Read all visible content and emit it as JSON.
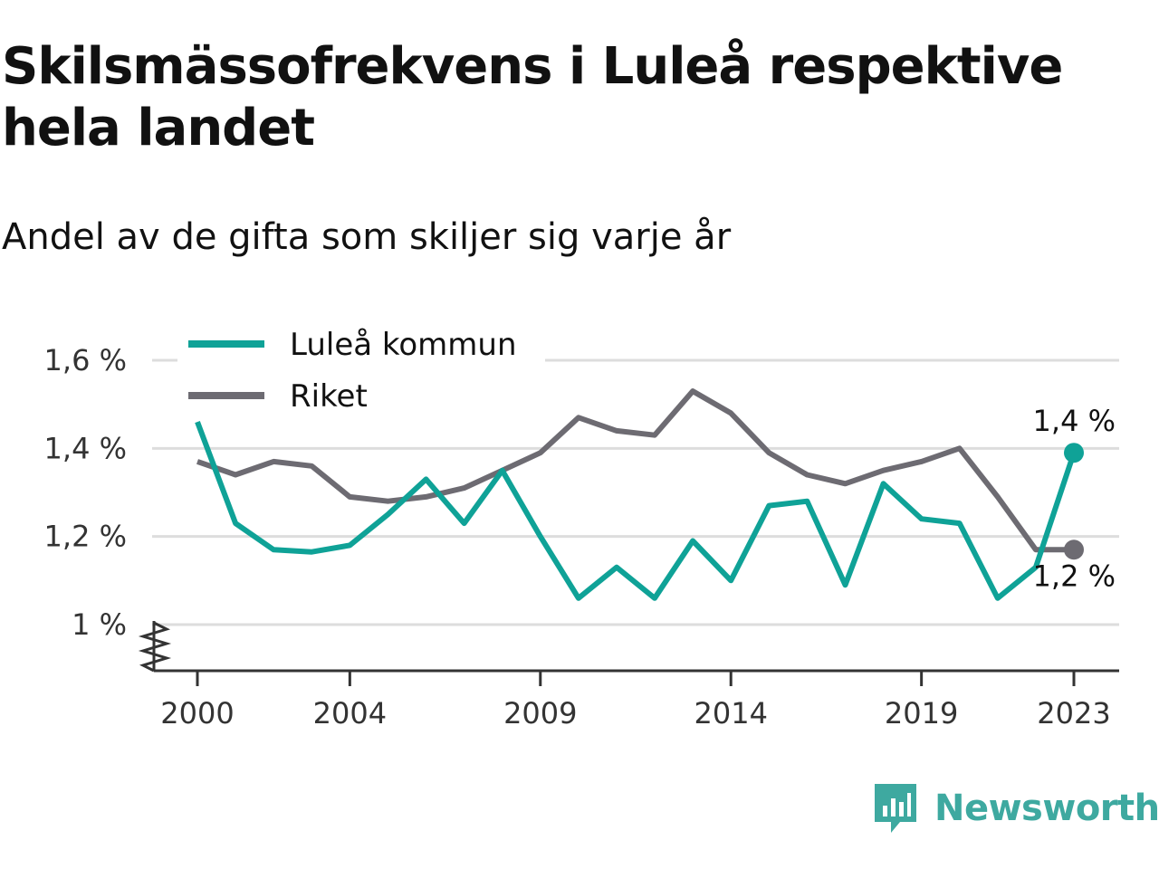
{
  "title": "Skilsmässofrekvens i Luleå respektive hela landet",
  "subtitle": "Andel av de gifta som skiljer sig varje år",
  "colors": {
    "lulea": "#0fa297",
    "riket": "#6d6b72",
    "grid": "#dddddd",
    "axis": "#333333",
    "brand": "#3ea9a0"
  },
  "brand": {
    "name": "Newsworthy",
    "icon": "newsworthy-logo-icon"
  },
  "chart_data": {
    "type": "line",
    "x": [
      2000,
      2001,
      2002,
      2003,
      2004,
      2005,
      2006,
      2007,
      2008,
      2009,
      2010,
      2011,
      2012,
      2013,
      2014,
      2015,
      2016,
      2017,
      2018,
      2019,
      2020,
      2021,
      2022,
      2023
    ],
    "x_tick_labels": [
      "2000",
      "2004",
      "2009",
      "2014",
      "2019",
      "2023"
    ],
    "x_ticks": [
      2000,
      2004,
      2009,
      2014,
      2019,
      2023
    ],
    "y_tick_labels": [
      "1 %",
      "1,2 %",
      "1,4 %",
      "1,6 %"
    ],
    "y_ticks": [
      1.0,
      1.2,
      1.4,
      1.6
    ],
    "ylim": [
      1.0,
      1.6
    ],
    "y_axis_break": true,
    "legend_placement": "top-left",
    "series": [
      {
        "name": "Luleå kommun",
        "color": "#0fa297",
        "values": [
          1.46,
          1.23,
          1.17,
          1.165,
          1.18,
          1.25,
          1.33,
          1.23,
          1.35,
          1.2,
          1.06,
          1.13,
          1.06,
          1.19,
          1.1,
          1.27,
          1.28,
          1.09,
          1.32,
          1.24,
          1.23,
          1.06,
          1.13,
          1.39
        ],
        "end_label": "1,4 %"
      },
      {
        "name": "Riket",
        "color": "#6d6b72",
        "values": [
          1.37,
          1.34,
          1.37,
          1.36,
          1.29,
          1.28,
          1.29,
          1.31,
          1.35,
          1.39,
          1.47,
          1.44,
          1.43,
          1.53,
          1.48,
          1.39,
          1.34,
          1.32,
          1.35,
          1.37,
          1.4,
          1.29,
          1.17,
          1.17
        ],
        "end_label": "1,2 %"
      }
    ]
  }
}
